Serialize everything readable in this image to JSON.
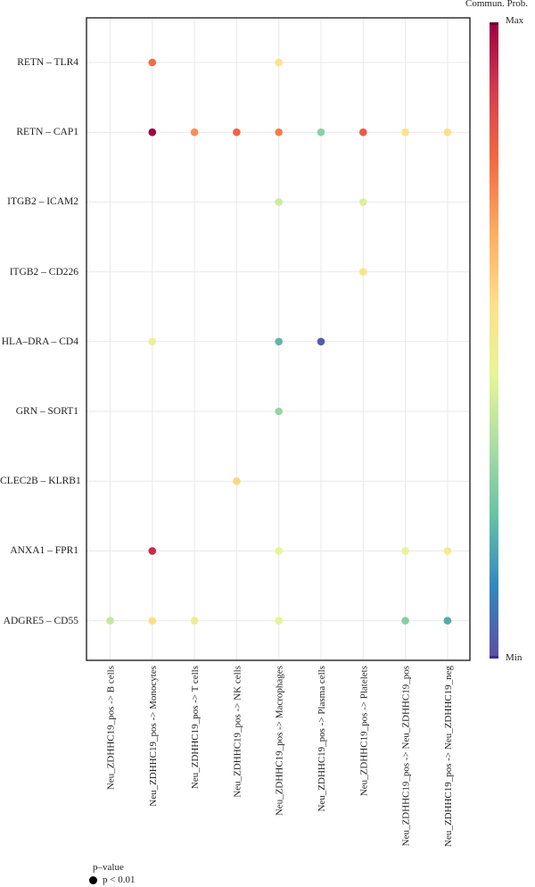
{
  "chart_data": {
    "type": "scatter",
    "subtype": "dot-plot",
    "y_categories": [
      "RETN – TLR4",
      "RETN – CAP1",
      "ITGB2 – ICAM2",
      "ITGB2 – CD226",
      "HLA–DRA – CD4",
      "GRN – SORT1",
      "CLEC2B – KLRB1",
      "ANXA1 – FPR1",
      "ADGRE5 – CD55"
    ],
    "x_categories": [
      "Neu_ZDHHC19_pos -> B cells",
      "Neu_ZDHHC19_pos -> Monocytes",
      "Neu_ZDHHC19_pos -> T cells",
      "Neu_ZDHHC19_pos -> NK cells",
      "Neu_ZDHHC19_pos -> Macrophages",
      "Neu_ZDHHC19_pos -> Plasma cells",
      "Neu_ZDHHC19_pos -> Platelets",
      "Neu_ZDHHC19_pos -> Neu_ZDHHC19_pos",
      "Neu_ZDHHC19_pos -> Neu_ZDHHC19_neg"
    ],
    "points": [
      {
        "x": 1,
        "y": 0,
        "value": 0.78
      },
      {
        "x": 4,
        "y": 0,
        "value": 0.55
      },
      {
        "x": 1,
        "y": 1,
        "value": 1.0
      },
      {
        "x": 2,
        "y": 1,
        "value": 0.72
      },
      {
        "x": 3,
        "y": 1,
        "value": 0.8
      },
      {
        "x": 4,
        "y": 1,
        "value": 0.75
      },
      {
        "x": 5,
        "y": 1,
        "value": 0.28
      },
      {
        "x": 6,
        "y": 1,
        "value": 0.82
      },
      {
        "x": 7,
        "y": 1,
        "value": 0.55
      },
      {
        "x": 8,
        "y": 1,
        "value": 0.56
      },
      {
        "x": 4,
        "y": 2,
        "value": 0.4
      },
      {
        "x": 6,
        "y": 2,
        "value": 0.42
      },
      {
        "x": 6,
        "y": 3,
        "value": 0.54
      },
      {
        "x": 1,
        "y": 4,
        "value": 0.47
      },
      {
        "x": 4,
        "y": 4,
        "value": 0.2
      },
      {
        "x": 5,
        "y": 4,
        "value": 0.03
      },
      {
        "x": 4,
        "y": 5,
        "value": 0.3
      },
      {
        "x": 3,
        "y": 6,
        "value": 0.58
      },
      {
        "x": 1,
        "y": 7,
        "value": 0.92
      },
      {
        "x": 4,
        "y": 7,
        "value": 0.45
      },
      {
        "x": 7,
        "y": 7,
        "value": 0.46
      },
      {
        "x": 8,
        "y": 7,
        "value": 0.5
      },
      {
        "x": 0,
        "y": 8,
        "value": 0.38
      },
      {
        "x": 1,
        "y": 8,
        "value": 0.56
      },
      {
        "x": 2,
        "y": 8,
        "value": 0.48
      },
      {
        "x": 4,
        "y": 8,
        "value": 0.44
      },
      {
        "x": 7,
        "y": 8,
        "value": 0.27
      },
      {
        "x": 8,
        "y": 8,
        "value": 0.18
      }
    ],
    "color_scale": {
      "title": "Commun. Prob.",
      "max_label": "Max",
      "min_label": "Min",
      "colors": [
        "#5e4fa2",
        "#3288bd",
        "#66c2a5",
        "#abdda4",
        "#e6f598",
        "#fee08b",
        "#fdae61",
        "#f46d43",
        "#d53e4f",
        "#9e0142"
      ]
    },
    "size_legend": {
      "title": "p–value",
      "label": "p < 0.01"
    },
    "grid": true
  }
}
